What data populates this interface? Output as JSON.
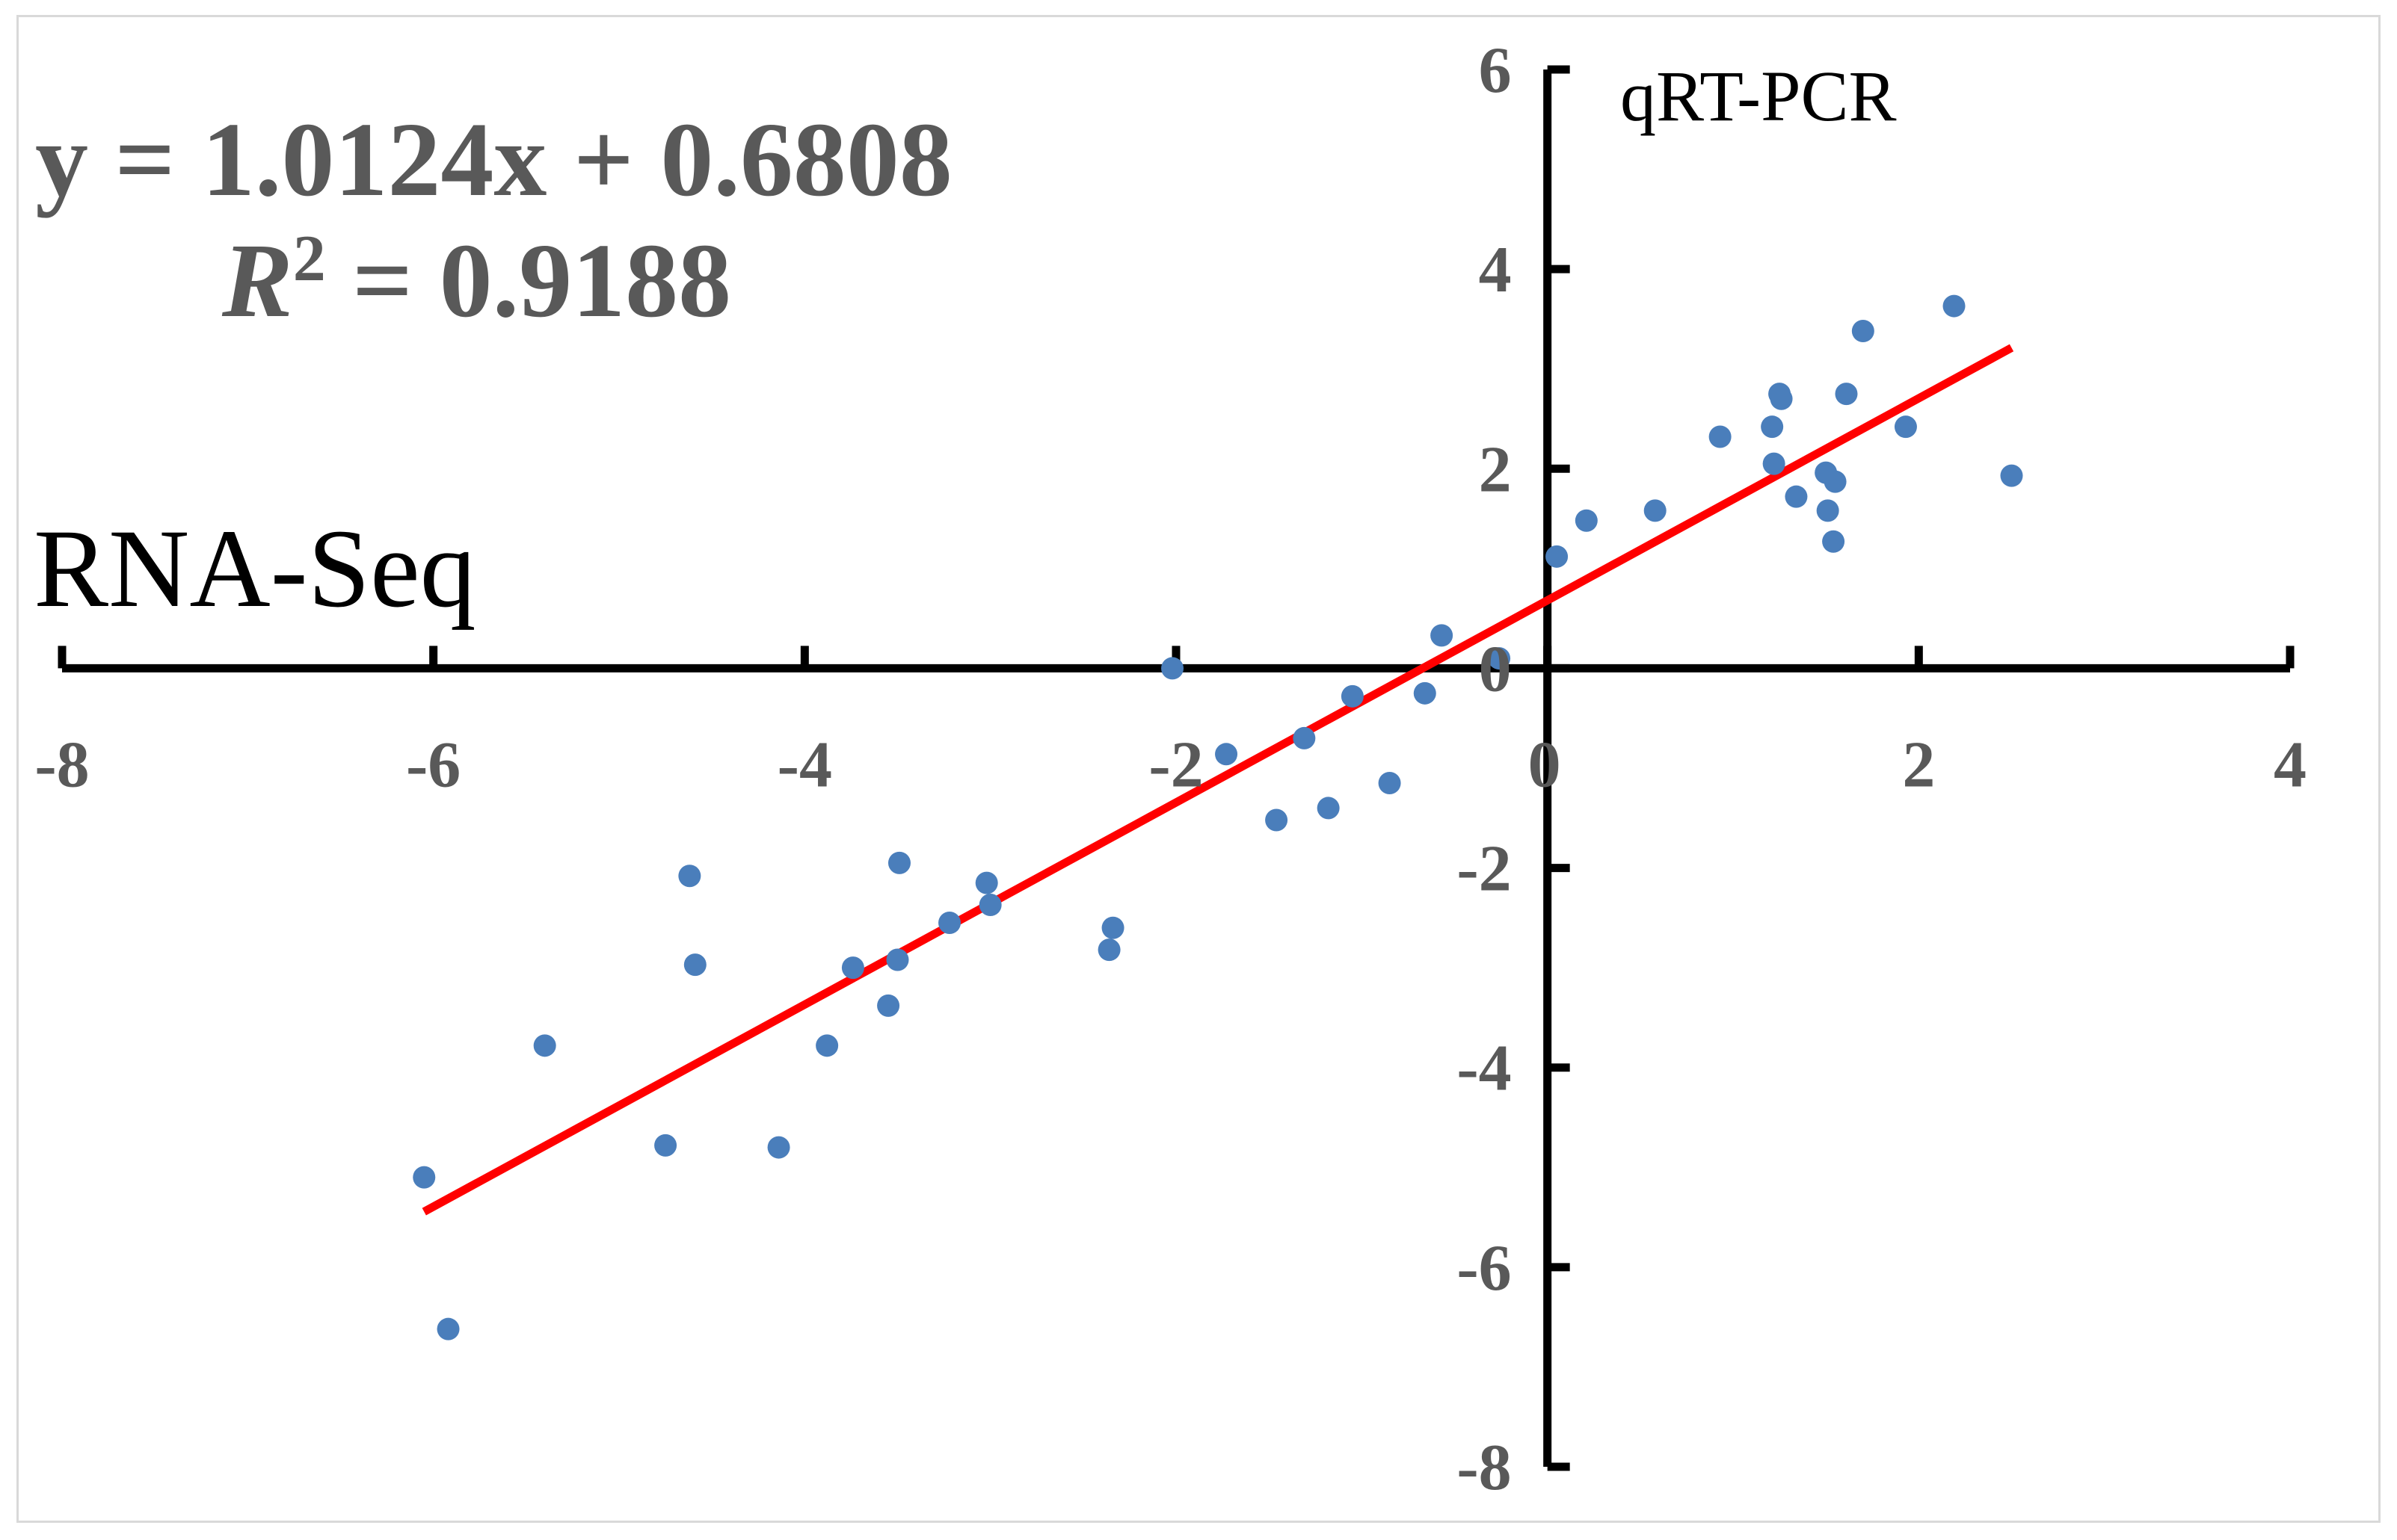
{
  "chart_data": {
    "type": "scatter",
    "xlabel": "RNA-Seq",
    "ylabel": "qRT-PCR",
    "xlim": [
      -8,
      4
    ],
    "ylim": [
      -8,
      6
    ],
    "xticks": [
      -8,
      -6,
      -4,
      -2,
      0,
      2,
      4
    ],
    "yticks": [
      6,
      4,
      2,
      0,
      -2,
      -4,
      -6,
      -8
    ],
    "grid": false,
    "legend": "none",
    "point_color": "#4a7ebb",
    "trendline_color": "#ff0000",
    "trendline": {
      "slope": 1.0124,
      "intercept": 0.6808,
      "x_range": [
        -6.05,
        2.5
      ],
      "equation": "y = 1.0124x + 0.6808",
      "r2_label": "R",
      "r2_sup": "2",
      "r2_value": " = 0.9188"
    },
    "points": [
      [
        -6.05,
        -5.1
      ],
      [
        -5.92,
        -6.62
      ],
      [
        -5.4,
        -3.78
      ],
      [
        -4.75,
        -4.78
      ],
      [
        -4.62,
        -2.08
      ],
      [
        -4.59,
        -2.97
      ],
      [
        -4.14,
        -4.8
      ],
      [
        -3.88,
        -3.78
      ],
      [
        -3.74,
        -3.0
      ],
      [
        -3.55,
        -3.38
      ],
      [
        -3.5,
        -2.92
      ],
      [
        -3.49,
        -1.95
      ],
      [
        -3.22,
        -2.55
      ],
      [
        -3.02,
        -2.15
      ],
      [
        -3.0,
        -2.37
      ],
      [
        -2.36,
        -2.82
      ],
      [
        -2.34,
        -2.6
      ],
      [
        -2.02,
        0.0
      ],
      [
        -1.73,
        -0.86
      ],
      [
        -1.46,
        -1.52
      ],
      [
        -1.31,
        -0.7
      ],
      [
        -1.18,
        -1.4
      ],
      [
        -1.05,
        -0.28
      ],
      [
        -0.85,
        -1.15
      ],
      [
        -0.66,
        -0.25
      ],
      [
        -0.57,
        0.33
      ],
      [
        -0.26,
        0.1
      ],
      [
        0.05,
        1.12
      ],
      [
        0.21,
        1.48
      ],
      [
        0.58,
        1.58
      ],
      [
        0.93,
        2.32
      ],
      [
        1.21,
        2.42
      ],
      [
        1.22,
        2.05
      ],
      [
        1.25,
        2.75
      ],
      [
        1.26,
        2.7
      ],
      [
        1.34,
        1.72
      ],
      [
        1.5,
        1.96
      ],
      [
        1.51,
        1.58
      ],
      [
        1.54,
        1.27
      ],
      [
        1.55,
        1.87
      ],
      [
        1.61,
        2.75
      ],
      [
        1.7,
        3.38
      ],
      [
        1.93,
        2.42
      ],
      [
        2.19,
        3.63
      ],
      [
        2.5,
        1.93
      ]
    ]
  }
}
